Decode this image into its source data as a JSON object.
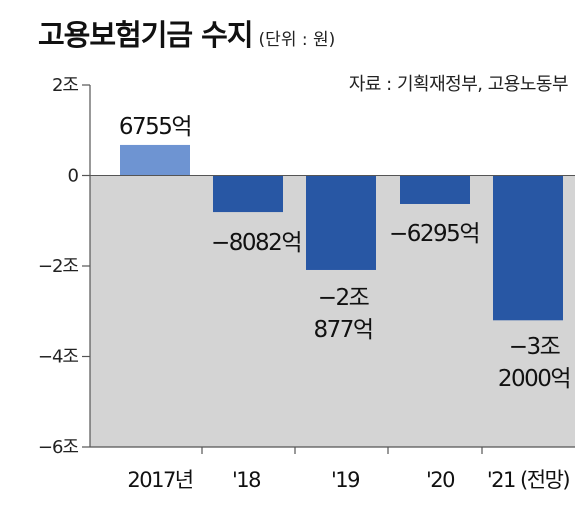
{
  "header": {
    "title": "고용보험기금 수지",
    "unit": "(단위 : 원)",
    "source": "자료 : 기획재정부, 고용노동부"
  },
  "colors": {
    "negative_area": "#d4d4d4",
    "positive_bar": "#6e94d2",
    "negative_bar": "#2857a4"
  },
  "chart_data": {
    "type": "bar",
    "categories": [
      "2017년",
      "'18",
      "'19",
      "'20",
      "'21 (전망)"
    ],
    "values": [
      0.6755,
      -0.8082,
      -2.0877,
      -0.6295,
      -3.2
    ],
    "value_labels": [
      [
        "6755억"
      ],
      [
        "−8082억"
      ],
      [
        "−2조",
        "877억"
      ],
      [
        "−6295억"
      ],
      [
        "−3조",
        "2000억"
      ]
    ],
    "yticks": [
      {
        "value": 2,
        "label": "2조"
      },
      {
        "value": 0,
        "label": "0"
      },
      {
        "value": -2,
        "label": "−2조"
      },
      {
        "value": -4,
        "label": "−4조"
      },
      {
        "value": -6,
        "label": "−6조"
      }
    ],
    "ylim": [
      -6,
      2
    ],
    "grid": false,
    "legend": "none"
  }
}
